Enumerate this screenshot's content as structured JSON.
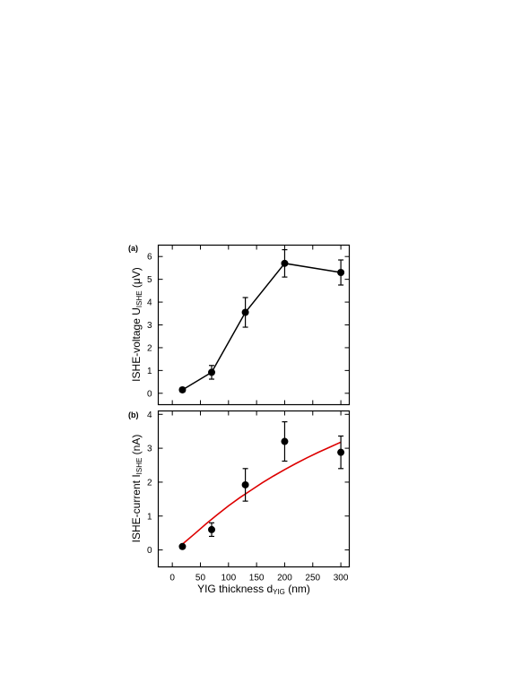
{
  "chart_data": [
    {
      "type": "line",
      "panel_label": "(a)",
      "ylabel_main": "ISHE-voltage U",
      "ylabel_sub": "ISHE",
      "ylabel_unit": " (μV)",
      "xlim": [
        -25,
        315
      ],
      "ylim": [
        -0.5,
        6.5
      ],
      "yticks": [
        0,
        1,
        2,
        3,
        4,
        5,
        6
      ],
      "grid": false,
      "series": [
        {
          "x": [
            18,
            70,
            130,
            200,
            300
          ],
          "y": [
            0.15,
            0.92,
            3.55,
            5.7,
            5.3
          ],
          "yerr": [
            0.1,
            0.3,
            0.65,
            0.6,
            0.55
          ],
          "color": "#000000"
        }
      ]
    },
    {
      "type": "scatter",
      "panel_label": "(b)",
      "ylabel_main": "ISHE-current I",
      "ylabel_sub": "ISHE",
      "ylabel_unit": " (nA)",
      "xlabel_main": "YIG thickness d",
      "xlabel_sub": "YIG",
      "xlabel_unit": " (nm)",
      "xlim": [
        -25,
        315
      ],
      "ylim": [
        -0.5,
        4.1
      ],
      "xticks": [
        0,
        50,
        100,
        150,
        200,
        250,
        300
      ],
      "yticks": [
        0,
        1,
        2,
        3,
        4
      ],
      "grid": false,
      "series": [
        {
          "x": [
            18,
            70,
            130,
            200,
            300
          ],
          "y": [
            0.1,
            0.6,
            1.92,
            3.2,
            2.88
          ],
          "yerr": [
            0.05,
            0.2,
            0.48,
            0.58,
            0.48
          ],
          "color": "#000000"
        }
      ],
      "fit": {
        "x": [
          18,
          40,
          60,
          80,
          100,
          120,
          140,
          160,
          180,
          200,
          220,
          240,
          260,
          280,
          300
        ],
        "y": [
          0.17,
          0.48,
          0.77,
          1.04,
          1.3,
          1.54,
          1.76,
          1.98,
          2.18,
          2.37,
          2.55,
          2.72,
          2.88,
          3.03,
          3.18
        ],
        "color": "#dd0000"
      }
    }
  ]
}
